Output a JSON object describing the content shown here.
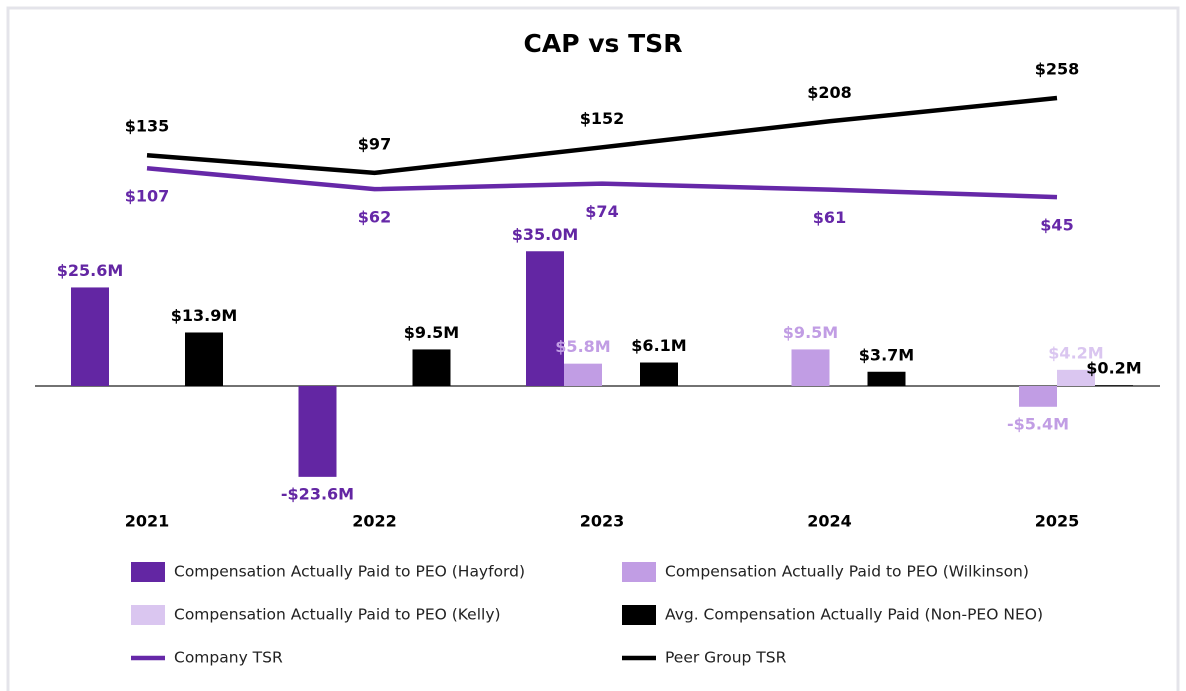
{
  "chart_data": {
    "type": "bar",
    "title": "CAP vs TSR",
    "categories": [
      "2021",
      "2022",
      "2023",
      "2024",
      "2025"
    ],
    "legend": "bottom",
    "series": [
      {
        "name": "Compensation Actually Paid to PEO (Hayford)",
        "type": "bar",
        "color": "#6326a3",
        "values": [
          25.6,
          -23.6,
          35.0,
          null,
          null
        ],
        "value_labels": [
          "$25.6M",
          "-$23.6M",
          "$35.0M",
          null,
          null
        ]
      },
      {
        "name": "Compensation Actually Paid to PEO (Wilkinson)",
        "type": "bar",
        "color": "#c19de4",
        "values": [
          null,
          null,
          5.8,
          9.5,
          -5.4
        ],
        "value_labels": [
          null,
          null,
          "$5.8M",
          "$9.5M",
          "-$5.4M"
        ]
      },
      {
        "name": "Compensation Actually Paid to PEO (Kelly)",
        "type": "bar",
        "color": "#dac6f0",
        "values": [
          null,
          null,
          null,
          null,
          4.2
        ],
        "value_labels": [
          null,
          null,
          null,
          null,
          "$4.2M"
        ]
      },
      {
        "name": "Avg. Compensation Actually Paid (Non-PEO NEO)",
        "type": "bar",
        "color": "#000000",
        "values": [
          13.9,
          9.5,
          6.1,
          3.7,
          0.2
        ],
        "value_labels": [
          "$13.9M",
          "$9.5M",
          "$6.1M",
          "$3.7M",
          "$0.2M"
        ]
      },
      {
        "name": "Company TSR",
        "type": "line",
        "color": "#6628a8",
        "values": [
          107,
          62,
          74,
          61,
          45
        ],
        "value_labels": [
          "$107",
          "$62",
          "$74",
          "$61",
          "$45"
        ]
      },
      {
        "name": "Peer Group TSR",
        "type": "line",
        "color": "#000000",
        "values": [
          135,
          97,
          152,
          208,
          258
        ],
        "value_labels": [
          "$135",
          "$97",
          "$152",
          "$208",
          "$258"
        ]
      }
    ]
  }
}
